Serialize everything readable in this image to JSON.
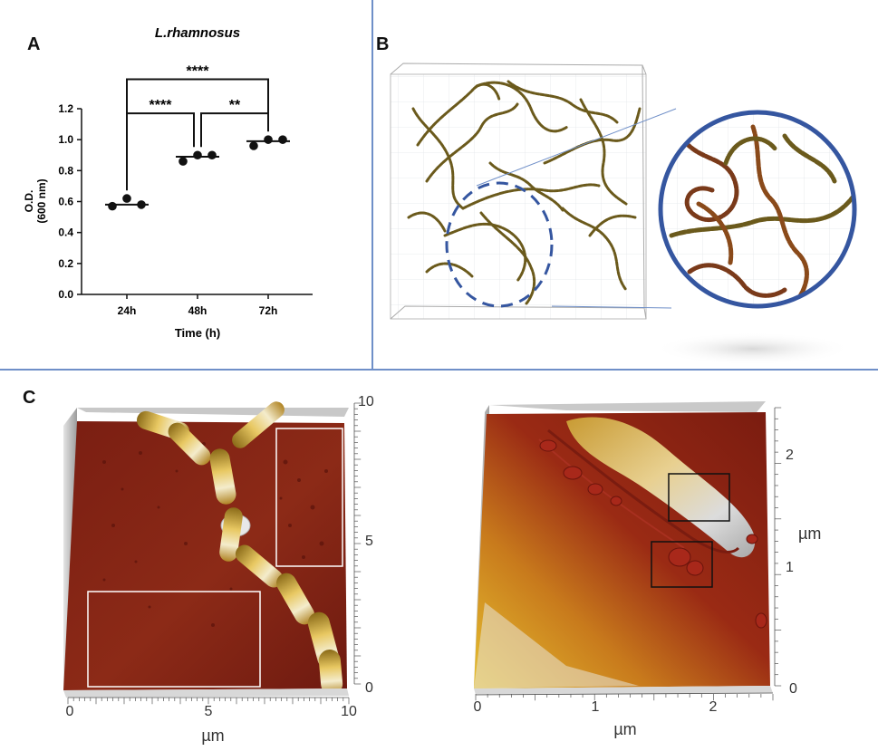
{
  "panels": {
    "a": {
      "letter": "A"
    },
    "b": {
      "letter": "B"
    },
    "c": {
      "letter": "C"
    }
  },
  "colors": {
    "divider": "#6f8fc8",
    "zoom_circle": "#3556a0",
    "bacteria": "#6b5a1c",
    "afm_dark": "#8a1f14",
    "afm_gold": "#d8ac36"
  },
  "chart_data": {
    "type": "scatter",
    "title": "L.rhamnosus",
    "xlabel": "Time (h)",
    "ylabel_line1": "O.D.",
    "ylabel_line2": "(600 nm)",
    "categories": [
      "24h",
      "48h",
      "72h"
    ],
    "ylim": [
      0,
      1.2
    ],
    "yticks": [
      "0.0",
      "0.2",
      "0.4",
      "0.6",
      "0.8",
      "1.0",
      "1.2"
    ],
    "points": [
      {
        "category": "24h",
        "values": [
          0.57,
          0.62,
          0.58
        ]
      },
      {
        "category": "48h",
        "values": [
          0.86,
          0.9,
          0.9
        ]
      },
      {
        "category": "72h",
        "values": [
          0.96,
          1.0,
          1.0
        ]
      }
    ],
    "means": [
      0.58,
      0.89,
      0.99
    ],
    "significance": [
      {
        "from": "24h",
        "to": "72h",
        "label": "****",
        "level": 1.39
      },
      {
        "from": "24h",
        "to": "48h",
        "label": "****",
        "level": 1.17
      },
      {
        "from": "48h",
        "to": "72h",
        "label": "**",
        "level": 1.17
      }
    ]
  },
  "afm_left": {
    "x_ticks": [
      "0",
      "5",
      "10"
    ],
    "y_ticks": [
      "0",
      "5",
      "10"
    ],
    "x_unit": "µm"
  },
  "afm_right": {
    "x_ticks": [
      "0",
      "1",
      "2"
    ],
    "y_ticks": [
      "0",
      "1",
      "2"
    ],
    "x_unit": "µm",
    "y_unit": "µm"
  }
}
